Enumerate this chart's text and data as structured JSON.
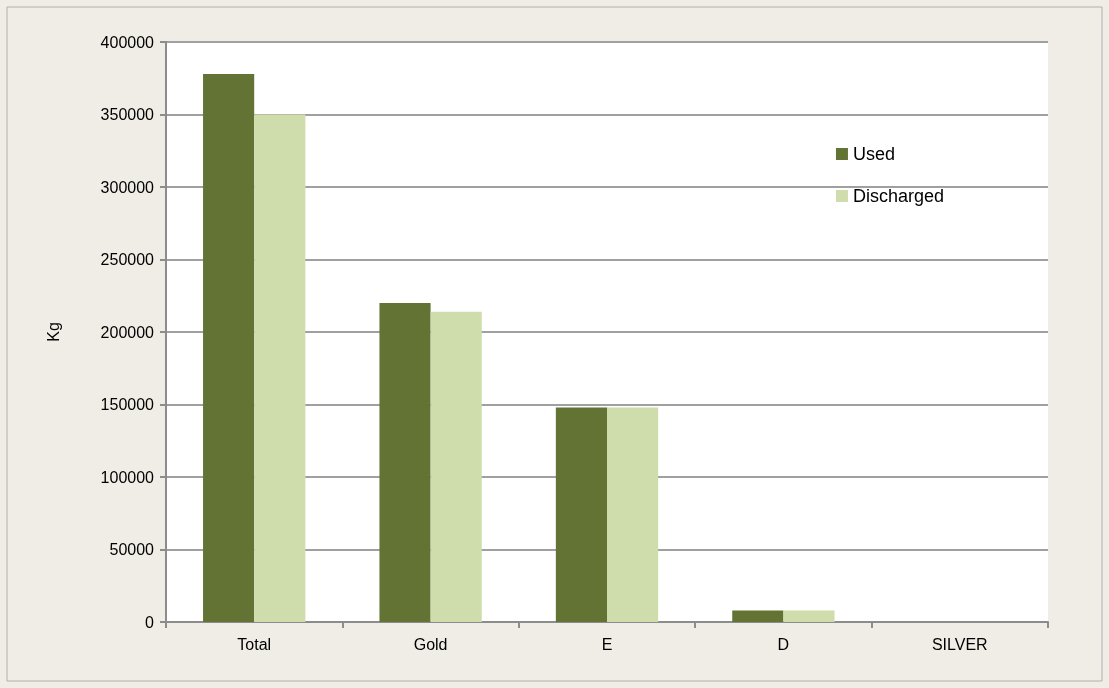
{
  "chart_data": {
    "type": "bar",
    "ylabel": "Kg",
    "categories": [
      "Total",
      "Gold",
      "E",
      "D",
      "SILVER"
    ],
    "series": [
      {
        "name": "Used",
        "color": "#627334",
        "values": [
          378000,
          220000,
          148000,
          8000,
          0
        ]
      },
      {
        "name": "Discharged",
        "color": "#cfdcac",
        "values": [
          350000,
          214000,
          148000,
          8000,
          0
        ]
      }
    ],
    "ylim": [
      0,
      400000
    ],
    "yticks": [
      0,
      50000,
      100000,
      150000,
      200000,
      250000,
      300000,
      350000,
      400000
    ],
    "grid": "y",
    "legend": "top right"
  }
}
